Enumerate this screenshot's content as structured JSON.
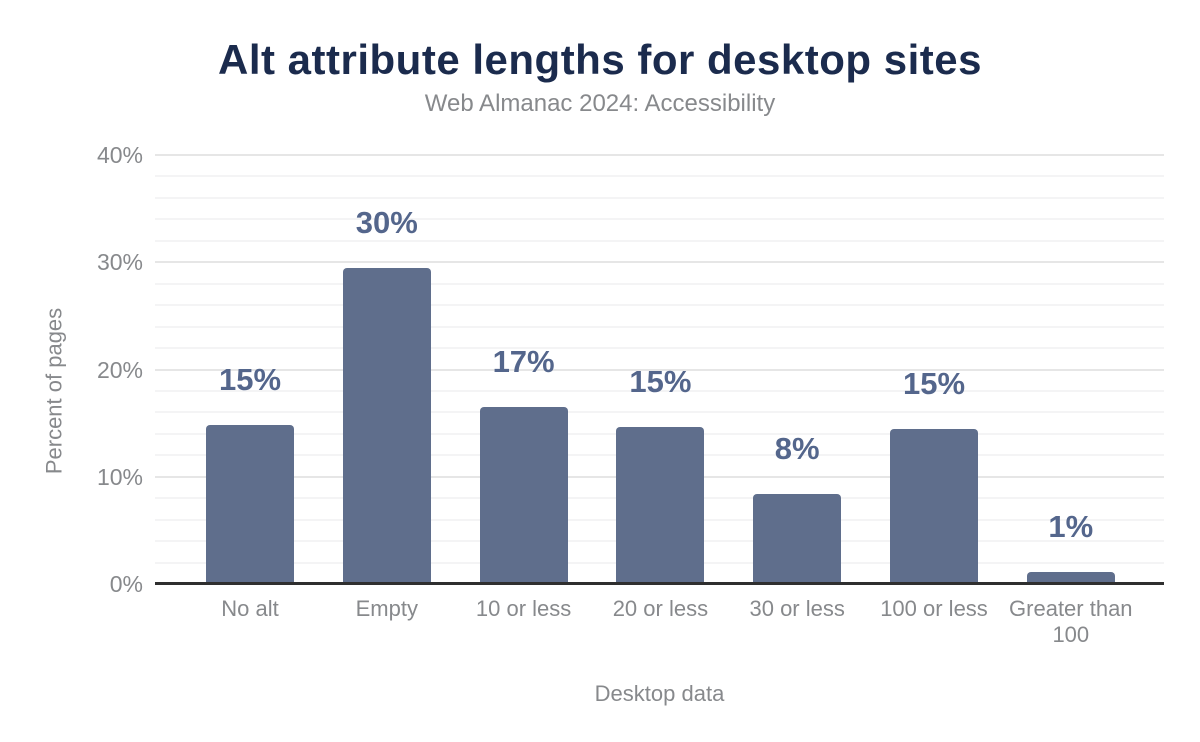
{
  "chart_data": {
    "type": "bar",
    "title": "Alt attribute lengths for desktop sites",
    "subtitle": "Web Almanac 2024: Accessibility",
    "xlabel": "Desktop data",
    "ylabel": "Percent of pages",
    "categories": [
      "No alt",
      "Empty",
      "10 or less",
      "20 or less",
      "30 or less",
      "100 or less",
      "Greater than 100"
    ],
    "values": [
      14.8,
      29.5,
      16.5,
      14.6,
      8.4,
      14.5,
      1.1
    ],
    "value_labels": [
      "15%",
      "30%",
      "17%",
      "15%",
      "8%",
      "15%",
      "1%"
    ],
    "y_ticks": [
      0,
      10,
      20,
      30,
      40
    ],
    "y_tick_labels": [
      "0%",
      "10%",
      "20%",
      "30%",
      "40%"
    ],
    "ylim": [
      0,
      40
    ],
    "grid": true,
    "grid_major_step": 10,
    "grid_minor_step": 2,
    "legend": "none",
    "colors": {
      "background": "#ffffff",
      "title": "#1b2b4d",
      "gray_text": "#87898c",
      "bar": "#5f6e8c",
      "value_label": "#54668c",
      "axis_line": "#2f2f2f",
      "grid_major": "#e6e6e6",
      "grid_minor": "#f4f4f5"
    }
  }
}
